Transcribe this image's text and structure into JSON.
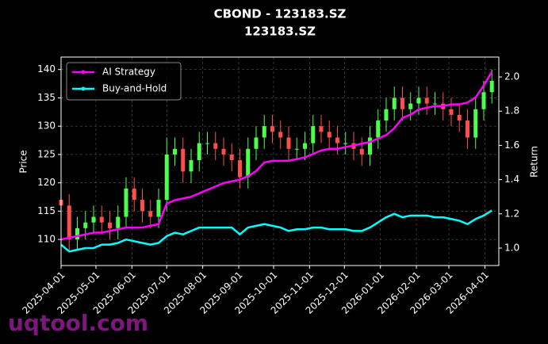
{
  "chart_data": {
    "type": "candlestick",
    "title": "CBOND - 123183.SZ",
    "subtitle": "123183.SZ",
    "ylabel": "Price",
    "y2label": "Return",
    "annotation": "uqtool.com",
    "x": [
      "2025-04-01",
      "2025-04-08",
      "2025-04-15",
      "2025-04-22",
      "2025-04-29",
      "2025-05-06",
      "2025-05-13",
      "2025-05-20",
      "2025-05-27",
      "2025-06-03",
      "2025-06-10",
      "2025-06-17",
      "2025-06-24",
      "2025-07-01",
      "2025-07-08",
      "2025-07-15",
      "2025-07-22",
      "2025-07-29",
      "2025-08-05",
      "2025-08-12",
      "2025-08-19",
      "2025-08-26",
      "2025-09-02",
      "2025-09-09",
      "2025-09-16",
      "2025-09-23",
      "2025-09-30",
      "2025-10-07",
      "2025-10-14",
      "2025-10-21",
      "2025-10-28",
      "2025-11-04",
      "2025-11-11",
      "2025-11-18",
      "2025-11-25",
      "2025-12-02",
      "2025-12-09",
      "2025-12-16",
      "2025-12-23",
      "2025-12-30",
      "2026-01-06",
      "2026-01-13",
      "2026-01-20",
      "2026-01-27",
      "2026-02-03",
      "2026-02-10",
      "2026-02-17",
      "2026-02-24",
      "2026-03-03",
      "2026-03-10",
      "2026-03-17",
      "2026-03-24",
      "2026-03-31",
      "2026-04-07"
    ],
    "open": [
      117,
      116,
      110,
      112,
      113,
      114,
      113,
      112,
      114,
      119,
      117,
      115,
      114,
      117,
      125,
      126,
      122,
      124,
      127,
      127,
      126,
      125,
      124,
      121,
      126,
      128,
      130,
      129,
      128,
      126,
      126,
      127,
      130,
      129,
      128,
      127,
      127,
      126,
      125,
      128,
      131,
      133,
      135,
      133,
      134,
      135,
      134,
      134,
      133,
      132,
      131,
      128,
      133,
      136
    ],
    "high": [
      119,
      118,
      114,
      115,
      116,
      116,
      115,
      116,
      121,
      121,
      119,
      117,
      119,
      128,
      128,
      128,
      126,
      129,
      129,
      129,
      128,
      127,
      126,
      128,
      130,
      132,
      132,
      131,
      130,
      128,
      129,
      132,
      132,
      131,
      130,
      129,
      129,
      128,
      130,
      133,
      135,
      137,
      137,
      136,
      137,
      137,
      136,
      136,
      135,
      134,
      133,
      135,
      138,
      140
    ],
    "low": [
      114,
      108,
      108,
      110,
      111,
      111,
      110,
      110,
      112,
      115,
      113,
      112,
      112,
      115,
      123,
      120,
      120,
      122,
      125,
      124,
      123,
      122,
      119,
      119,
      124,
      126,
      127,
      126,
      124,
      124,
      124,
      125,
      127,
      126,
      125,
      125,
      124,
      123,
      123,
      126,
      129,
      131,
      131,
      131,
      132,
      132,
      132,
      131,
      130,
      129,
      126,
      126,
      131,
      134
    ],
    "close": [
      116,
      110,
      112,
      113,
      114,
      113,
      112,
      114,
      119,
      117,
      115,
      114,
      117,
      125,
      126,
      122,
      124,
      127,
      127,
      126,
      125,
      124,
      121,
      126,
      128,
      130,
      129,
      128,
      126,
      126,
      127,
      130,
      129,
      128,
      127,
      127,
      126,
      125,
      128,
      131,
      133,
      135,
      133,
      134,
      135,
      134,
      134,
      133,
      132,
      131,
      128,
      133,
      136,
      138
    ],
    "up_color": "#4cff4c",
    "down_color": "#ff4c4c",
    "series": [
      {
        "name": "AI Strategy",
        "color": "#ff00ff",
        "axis": "y2",
        "values": [
          1.05,
          1.06,
          1.07,
          1.08,
          1.09,
          1.09,
          1.1,
          1.11,
          1.12,
          1.12,
          1.12,
          1.13,
          1.14,
          1.26,
          1.28,
          1.29,
          1.3,
          1.32,
          1.34,
          1.36,
          1.38,
          1.39,
          1.4,
          1.42,
          1.45,
          1.5,
          1.51,
          1.51,
          1.51,
          1.52,
          1.53,
          1.55,
          1.57,
          1.58,
          1.58,
          1.59,
          1.6,
          1.61,
          1.62,
          1.64,
          1.66,
          1.7,
          1.76,
          1.78,
          1.81,
          1.82,
          1.83,
          1.83,
          1.84,
          1.84,
          1.85,
          1.88,
          1.95,
          2.03
        ]
      },
      {
        "name": "Buy-and-Hold",
        "color": "#00ffff",
        "axis": "y2",
        "values": [
          1.02,
          0.98,
          0.99,
          1.0,
          1.0,
          1.02,
          1.02,
          1.03,
          1.05,
          1.04,
          1.03,
          1.02,
          1.03,
          1.07,
          1.09,
          1.08,
          1.1,
          1.12,
          1.12,
          1.12,
          1.12,
          1.12,
          1.08,
          1.12,
          1.13,
          1.14,
          1.13,
          1.12,
          1.1,
          1.11,
          1.11,
          1.12,
          1.12,
          1.11,
          1.11,
          1.11,
          1.1,
          1.1,
          1.12,
          1.15,
          1.18,
          1.2,
          1.18,
          1.19,
          1.19,
          1.19,
          1.18,
          1.18,
          1.17,
          1.16,
          1.14,
          1.17,
          1.19,
          1.22
        ]
      }
    ],
    "xlim": [
      "2025-04-01",
      "2026-04-13"
    ],
    "xticks": [
      "2025-04-01",
      "2025-05-01",
      "2025-06-01",
      "2025-07-01",
      "2025-08-01",
      "2025-09-01",
      "2025-10-01",
      "2025-11-01",
      "2025-12-01",
      "2026-01-01",
      "2026-02-01",
      "2026-03-01",
      "2026-04-01"
    ],
    "ylim": [
      105.4,
      142.2
    ],
    "yticks": [
      110,
      115,
      120,
      125,
      130,
      135,
      140
    ],
    "y2lim": [
      0.898,
      2.116
    ],
    "y2ticks": [
      {
        "value": 1,
        "label": "1.0"
      },
      1.2,
      1.4,
      1.6,
      1.8,
      {
        "value": 2,
        "label": "2.0"
      }
    ],
    "grid": true,
    "legend": "upper left"
  }
}
